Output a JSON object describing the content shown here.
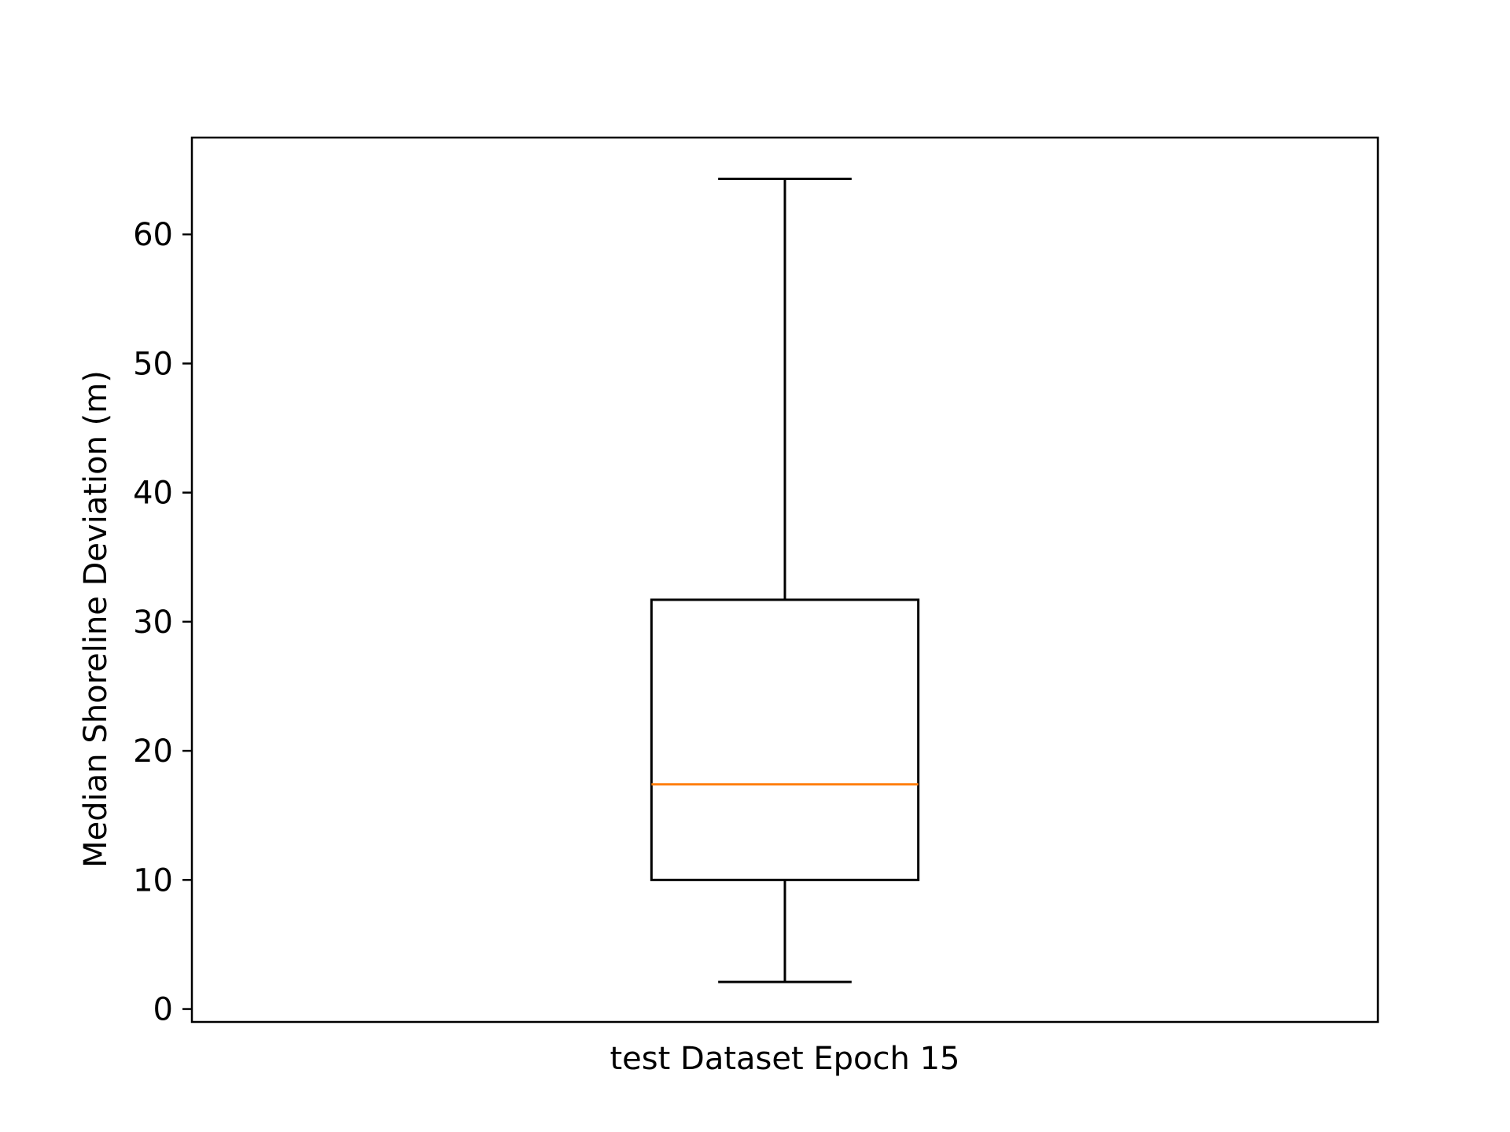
{
  "chart_data": {
    "type": "box",
    "title": "",
    "xlabel": "",
    "ylabel": "Median Shoreline Deviation (m)",
    "ylim": [
      -1,
      67.5
    ],
    "yticks": [
      0,
      10,
      20,
      30,
      40,
      50,
      60
    ],
    "grid": false,
    "categories": [
      "test Dataset Epoch 15"
    ],
    "boxes": [
      {
        "category": "test Dataset Epoch 15",
        "whisker_low": 2.1,
        "q1": 10.0,
        "median": 17.4,
        "q3": 31.7,
        "whisker_high": 64.3
      }
    ],
    "colors": {
      "box": "#000000",
      "median": "#ff7f0e"
    }
  }
}
